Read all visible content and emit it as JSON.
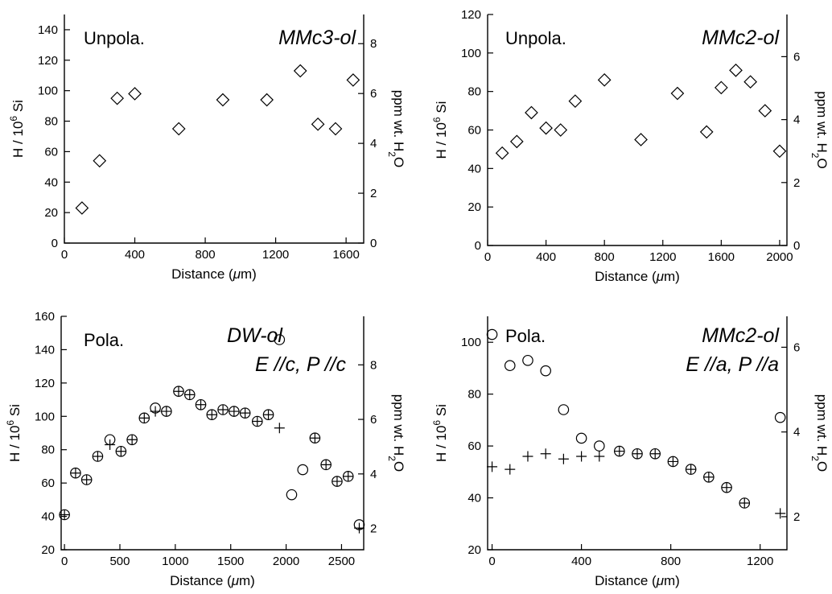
{
  "chart_data": [
    {
      "type": "scatter",
      "label": "Unpola.",
      "sample": "MMc3-ol",
      "xlabel": "Distance (μm)",
      "ylabel": "H / 10⁶ Si",
      "y2label": "ppm wt. H₂O",
      "xlim": [
        0,
        1700
      ],
      "ylim": [
        0,
        150
      ],
      "y2lim": [
        0,
        9.17
      ],
      "xticks": [
        0,
        400,
        800,
        1200,
        1600
      ],
      "yticks": [
        0,
        20,
        40,
        60,
        80,
        100,
        120,
        140
      ],
      "y2ticks": [
        0,
        2,
        4,
        6,
        8
      ],
      "series": [
        {
          "marker": "diamond",
          "points": [
            [
              100,
              23
            ],
            [
              200,
              54
            ],
            [
              300,
              95
            ],
            [
              400,
              98
            ],
            [
              650,
              75
            ],
            [
              900,
              94
            ],
            [
              1150,
              94
            ],
            [
              1340,
              113
            ],
            [
              1440,
              78
            ],
            [
              1540,
              75
            ],
            [
              1640,
              107
            ]
          ]
        }
      ]
    },
    {
      "type": "scatter",
      "label": "Unpola.",
      "sample": "MMc2-ol",
      "xlabel": "Distance (μm)",
      "ylabel": "H / 10⁶ Si",
      "y2label": "ppm wt. H₂O",
      "xlim": [
        0,
        2050
      ],
      "ylim": [
        0,
        120
      ],
      "y2lim": [
        0,
        7.34
      ],
      "xticks": [
        0,
        400,
        800,
        1200,
        1600,
        2000
      ],
      "yticks": [
        0,
        20,
        40,
        60,
        80,
        100,
        120
      ],
      "y2ticks": [
        0,
        2,
        4,
        6
      ],
      "series": [
        {
          "marker": "diamond",
          "points": [
            [
              100,
              48
            ],
            [
              200,
              54
            ],
            [
              300,
              69
            ],
            [
              400,
              61
            ],
            [
              500,
              60
            ],
            [
              600,
              75
            ],
            [
              800,
              86
            ],
            [
              1050,
              55
            ],
            [
              1300,
              79
            ],
            [
              1500,
              59
            ],
            [
              1600,
              82
            ],
            [
              1700,
              91
            ],
            [
              1800,
              85
            ],
            [
              1900,
              70
            ],
            [
              2000,
              49
            ]
          ]
        }
      ]
    },
    {
      "type": "scatter",
      "label": "Pola.",
      "sample": "DW-ol",
      "orientation": "E //c, P //c",
      "xlabel": "Distance (μm)",
      "ylabel": "H / 10⁶ Si",
      "y2label": "ppm wt. H₂O",
      "xlim": [
        -30,
        2700
      ],
      "ylim": [
        20,
        160
      ],
      "y2lim": [
        1.22,
        9.78
      ],
      "xticks": [
        0,
        500,
        1000,
        1500,
        2000,
        2500
      ],
      "yticks": [
        20,
        40,
        60,
        80,
        100,
        120,
        140,
        160
      ],
      "y2ticks": [
        2,
        4,
        6,
        8
      ],
      "series": [
        {
          "marker": "circle",
          "points": [
            [
              0,
              41
            ],
            [
              100,
              66
            ],
            [
              200,
              62
            ],
            [
              300,
              76
            ],
            [
              410,
              86
            ],
            [
              510,
              79
            ],
            [
              610,
              86
            ],
            [
              720,
              99
            ],
            [
              820,
              105
            ],
            [
              920,
              103
            ],
            [
              1030,
              115
            ],
            [
              1130,
              113
            ],
            [
              1230,
              107
            ],
            [
              1330,
              101
            ],
            [
              1430,
              104
            ],
            [
              1530,
              103
            ],
            [
              1630,
              102
            ],
            [
              1740,
              97
            ],
            [
              1840,
              101
            ],
            [
              1940,
              146
            ],
            [
              2050,
              53
            ],
            [
              2150,
              68
            ],
            [
              2260,
              87
            ],
            [
              2360,
              71
            ],
            [
              2460,
              61
            ],
            [
              2560,
              64
            ],
            [
              2660,
              35
            ]
          ]
        },
        {
          "marker": "plus",
          "points": [
            [
              0,
              41
            ],
            [
              100,
              66
            ],
            [
              200,
              62
            ],
            [
              300,
              76
            ],
            [
              410,
              83
            ],
            [
              510,
              79
            ],
            [
              610,
              86
            ],
            [
              720,
              99
            ],
            [
              820,
              103
            ],
            [
              920,
              103
            ],
            [
              1030,
              115
            ],
            [
              1130,
              113
            ],
            [
              1230,
              107
            ],
            [
              1330,
              101
            ],
            [
              1430,
              104
            ],
            [
              1530,
              103
            ],
            [
              1630,
              102
            ],
            [
              1740,
              97
            ],
            [
              1840,
              101
            ],
            [
              1940,
              93
            ],
            [
              2260,
              87
            ],
            [
              2360,
              71
            ],
            [
              2460,
              61
            ],
            [
              2560,
              64
            ],
            [
              2660,
              33
            ]
          ]
        }
      ]
    },
    {
      "type": "scatter",
      "label": "Pola.",
      "sample": "MMc2-ol",
      "orientation": "E //a, P //a",
      "xlabel": "Distance (μm)",
      "ylabel": "H / 10⁶ Si",
      "y2label": "ppm wt. H₂O",
      "xlim": [
        -20,
        1320
      ],
      "ylim": [
        20,
        110
      ],
      "y2lim": [
        1.22,
        6.73
      ],
      "xticks": [
        0,
        400,
        800,
        1200
      ],
      "yticks": [
        20,
        40,
        60,
        80,
        100
      ],
      "y2ticks": [
        2,
        4,
        6
      ],
      "series": [
        {
          "marker": "circle",
          "points": [
            [
              0,
              103
            ],
            [
              80,
              91
            ],
            [
              160,
              93
            ],
            [
              240,
              89
            ],
            [
              320,
              74
            ],
            [
              400,
              63
            ],
            [
              480,
              60
            ],
            [
              570,
              58
            ],
            [
              650,
              57
            ],
            [
              730,
              57
            ],
            [
              810,
              54
            ],
            [
              890,
              51
            ],
            [
              970,
              48
            ],
            [
              1050,
              44
            ],
            [
              1130,
              38
            ],
            [
              1290,
              71
            ]
          ]
        },
        {
          "marker": "plus",
          "points": [
            [
              0,
              52
            ],
            [
              80,
              51
            ],
            [
              160,
              56
            ],
            [
              240,
              57
            ],
            [
              320,
              55
            ],
            [
              400,
              56
            ],
            [
              480,
              56
            ],
            [
              570,
              58
            ],
            [
              650,
              57
            ],
            [
              730,
              57
            ],
            [
              810,
              54
            ],
            [
              890,
              51
            ],
            [
              970,
              48
            ],
            [
              1050,
              44
            ],
            [
              1130,
              38
            ],
            [
              1290,
              34
            ]
          ]
        }
      ]
    }
  ]
}
